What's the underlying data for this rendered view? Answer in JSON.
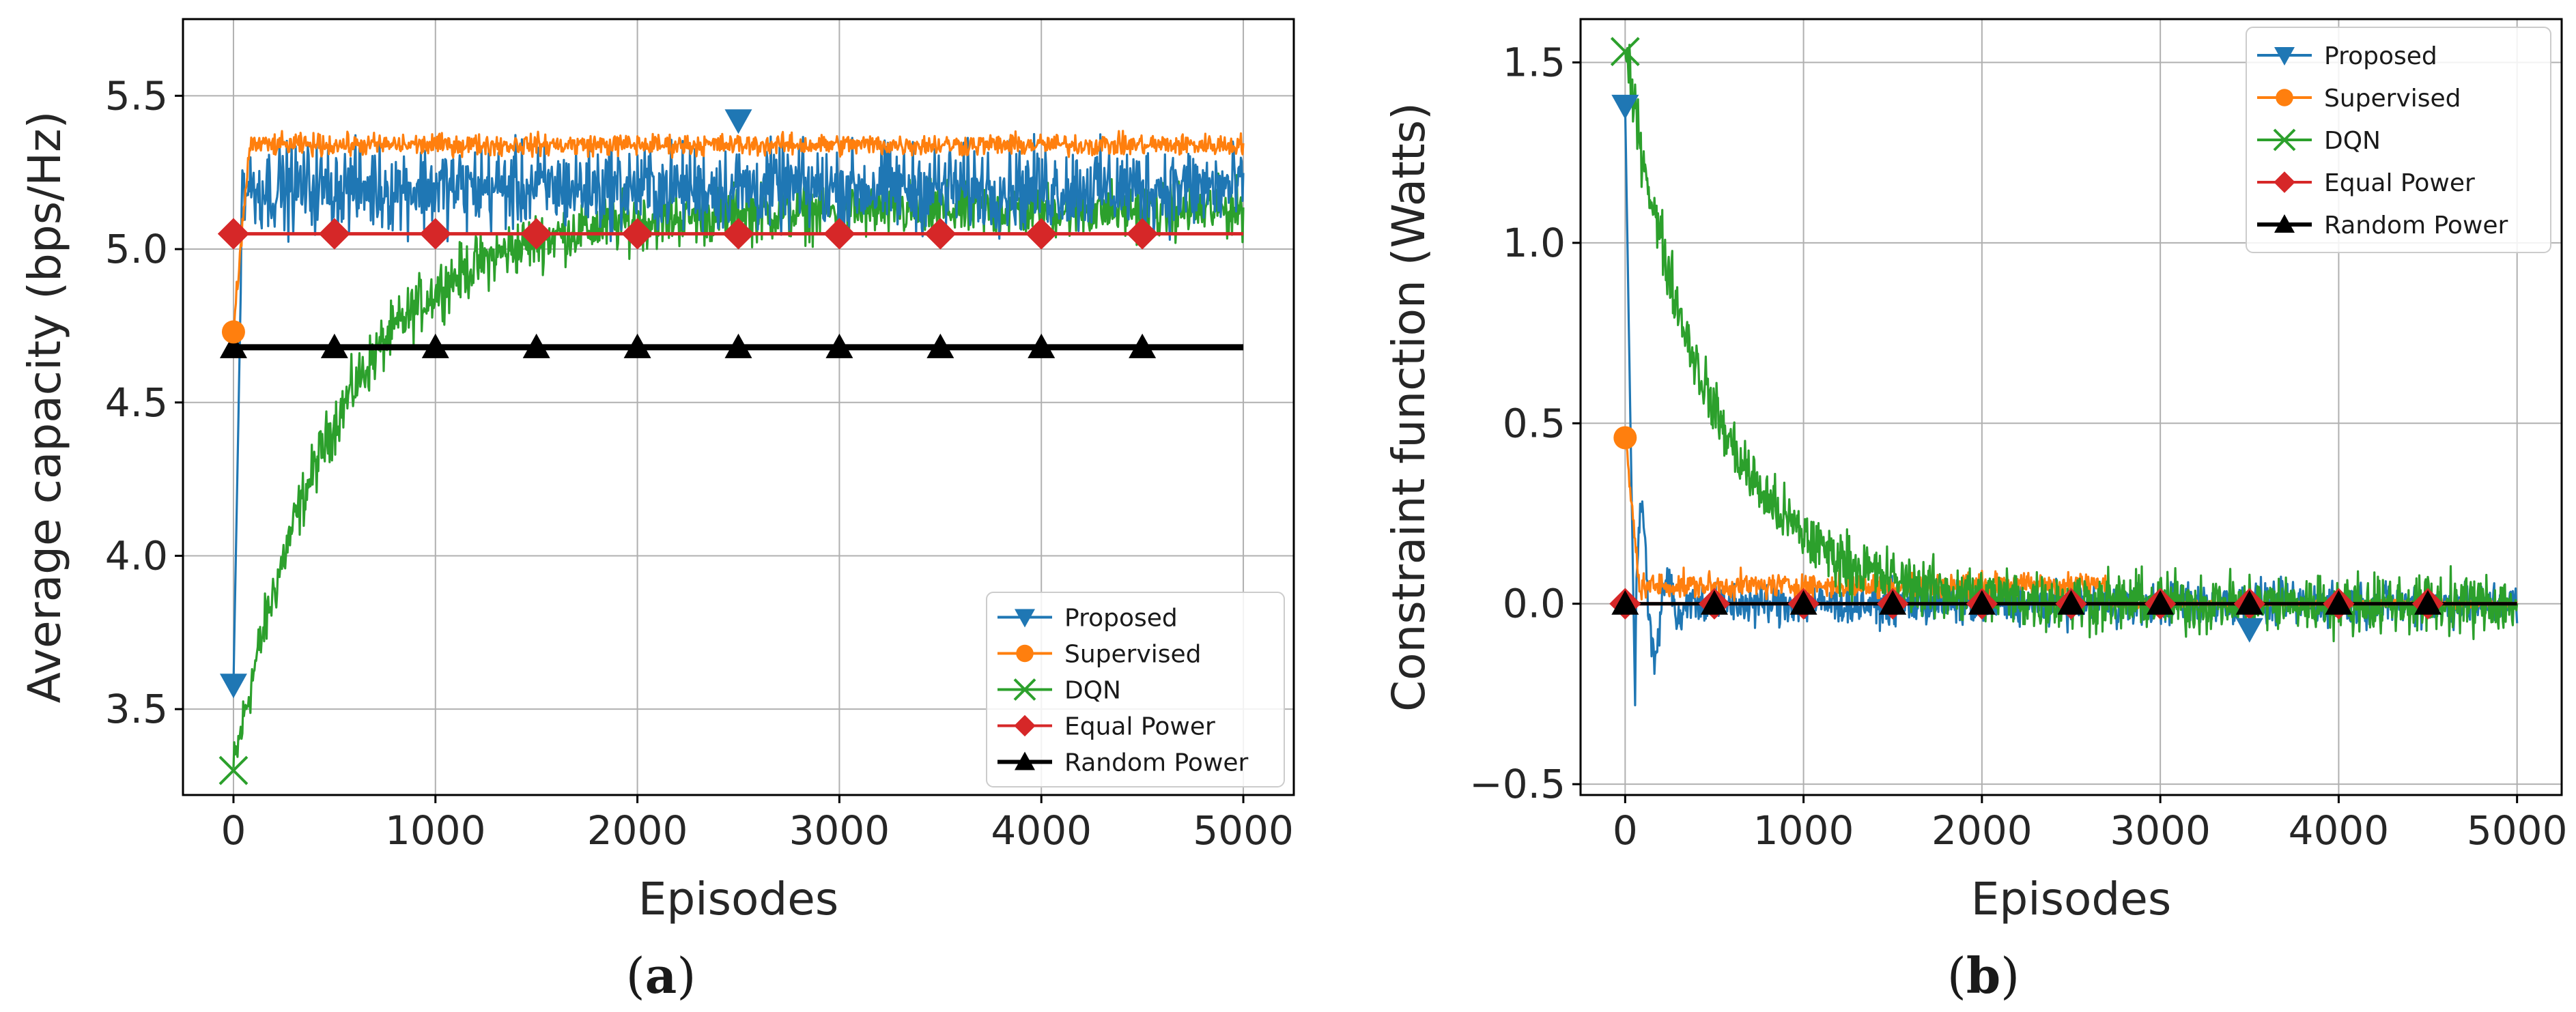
{
  "colors": {
    "proposed": "#1f77b4",
    "supervised": "#ff7f0e",
    "dqn": "#2ca02c",
    "equal": "#d62728",
    "random": "#000000",
    "grid": "#b0b0b0"
  },
  "chart_data": [
    {
      "panel": "a",
      "panel_label": {
        "open": "(",
        "letter": "a",
        "close": ")"
      },
      "type": "line",
      "title": "",
      "xlabel": "Episodes",
      "ylabel": "Average capacity (bps/Hz)",
      "xlim": [
        -250,
        5250
      ],
      "ylim": [
        3.22,
        5.75
      ],
      "xticks": [
        0,
        1000,
        2000,
        3000,
        4000,
        5000
      ],
      "xtick_labels": [
        "0",
        "1000",
        "2000",
        "3000",
        "4000",
        "5000"
      ],
      "yticks": [
        3.5,
        4.0,
        4.5,
        5.0,
        5.5
      ],
      "ytick_labels": [
        "3.5",
        "4.0",
        "4.5",
        "5.0",
        "5.5"
      ],
      "grid": true,
      "legend_position": "lower-right",
      "series": [
        {
          "name": "Proposed",
          "key": "proposed",
          "marker": "triangle-down",
          "start": 3.58,
          "steady": 5.2,
          "noise": 0.12,
          "markers_x": [
            0,
            2500
          ],
          "markers_y": [
            3.58,
            5.42
          ]
        },
        {
          "name": "Supervised",
          "key": "supervised",
          "marker": "circle",
          "start": 4.73,
          "steady": 5.34,
          "noise": 0.03,
          "markers_x": [
            0
          ],
          "markers_y": [
            4.73
          ]
        },
        {
          "name": "DQN",
          "key": "dqn",
          "marker": "x",
          "start": 3.3,
          "steady": 5.13,
          "noise": 0.08,
          "tau": 520,
          "markers_x": [
            0
          ],
          "markers_y": [
            3.3
          ]
        },
        {
          "name": "Equal Power",
          "key": "equal",
          "marker": "diamond",
          "value": 5.05,
          "markers_x": [
            0,
            500,
            1000,
            1500,
            2000,
            2500,
            3000,
            3500,
            4000,
            4500
          ]
        },
        {
          "name": "Random Power",
          "key": "random",
          "marker": "triangle-up",
          "value": 4.68,
          "markers_x": [
            0,
            500,
            1000,
            1500,
            2000,
            2500,
            3000,
            3500,
            4000,
            4500
          ]
        }
      ]
    },
    {
      "panel": "b",
      "panel_label": {
        "open": "(",
        "letter": "b",
        "close": ")"
      },
      "type": "line",
      "title": "",
      "xlabel": "Episodes",
      "ylabel": "Constraint function (Watts)",
      "xlim": [
        -250,
        5250
      ],
      "ylim": [
        -0.53,
        1.62
      ],
      "xticks": [
        0,
        1000,
        2000,
        3000,
        4000,
        5000
      ],
      "xtick_labels": [
        "0",
        "1000",
        "2000",
        "3000",
        "4000",
        "5000"
      ],
      "yticks": [
        -0.5,
        0.0,
        0.5,
        1.0,
        1.5
      ],
      "ytick_labels": [
        "−0.5",
        "0.0",
        "0.5",
        "1.0",
        "1.5"
      ],
      "grid": true,
      "legend_position": "upper-right",
      "series": [
        {
          "name": "Proposed",
          "key": "proposed",
          "marker": "triangle-down",
          "start": 1.38,
          "steady": 0.0,
          "noise": 0.05,
          "markers_x": [
            0,
            3500
          ],
          "markers_y": [
            1.38,
            -0.07
          ]
        },
        {
          "name": "Supervised",
          "key": "supervised",
          "marker": "circle",
          "start": 0.46,
          "steady": 0.05,
          "noise": 0.03,
          "markers_x": [
            0
          ],
          "markers_y": [
            0.46
          ]
        },
        {
          "name": "DQN",
          "key": "dqn",
          "marker": "x",
          "start": 1.53,
          "steady": 0.0,
          "noise": 0.07,
          "tau": 480,
          "markers_x": [
            0
          ],
          "markers_y": [
            1.53
          ]
        },
        {
          "name": "Equal Power",
          "key": "equal",
          "marker": "diamond",
          "value": 0.0,
          "markers_x": [
            0,
            500,
            1000,
            1500,
            2000,
            2500,
            3000,
            3500,
            4000,
            4500
          ]
        },
        {
          "name": "Random Power",
          "key": "random",
          "marker": "triangle-up",
          "value": 0.0,
          "markers_x": [
            0,
            500,
            1000,
            1500,
            2000,
            2500,
            3000,
            3500,
            4000,
            4500
          ]
        }
      ]
    }
  ]
}
